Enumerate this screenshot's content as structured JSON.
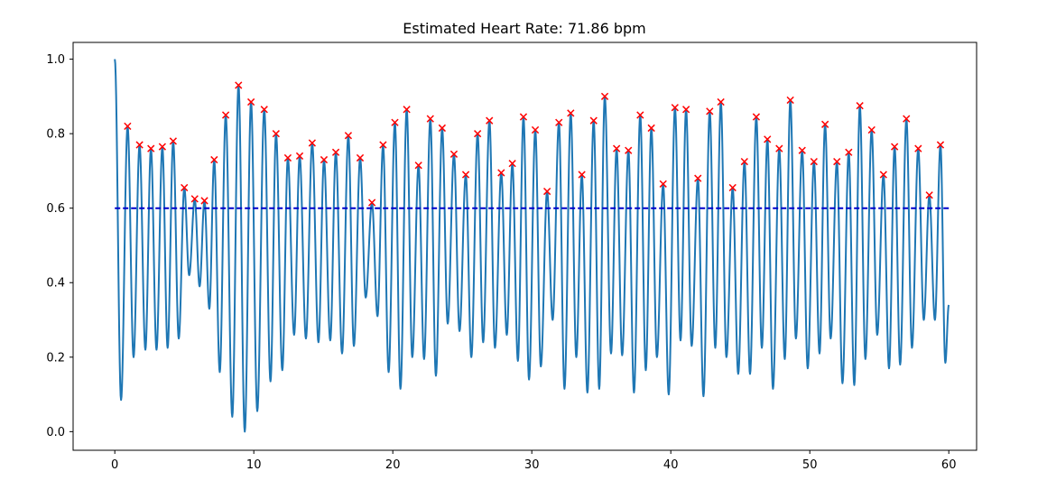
{
  "chart_data": {
    "type": "line",
    "title": "Estimated Heart Rate: 71.86 bpm",
    "xlabel": "",
    "ylabel": "",
    "xlim": [
      -3,
      62
    ],
    "ylim": [
      -0.05,
      1.045
    ],
    "x_ticks": [
      0,
      10,
      20,
      30,
      40,
      50,
      60
    ],
    "x_tick_labels": [
      "0",
      "10",
      "20",
      "30",
      "40",
      "50",
      "60"
    ],
    "y_ticks": [
      0.0,
      0.2,
      0.4,
      0.6,
      0.8,
      1.0
    ],
    "y_tick_labels": [
      "0.0",
      "0.2",
      "0.4",
      "0.6",
      "0.8",
      "1.0"
    ],
    "grid": false,
    "colors": {
      "signal": "#1f77b4",
      "peaks": "#ff0000",
      "threshold": "#0000cc"
    },
    "threshold": {
      "y": 0.6,
      "x_start": 0,
      "x_end": 60,
      "style": "dashed"
    },
    "peaks": {
      "x": [
        0.92,
        1.78,
        2.6,
        3.42,
        4.2,
        5.0,
        5.75,
        6.45,
        7.15,
        7.98,
        8.9,
        9.8,
        10.75,
        11.6,
        12.45,
        13.3,
        14.2,
        15.05,
        15.9,
        16.8,
        17.65,
        18.5,
        19.3,
        20.15,
        21.0,
        21.85,
        22.7,
        23.55,
        24.4,
        25.25,
        26.1,
        26.95,
        27.8,
        28.6,
        29.4,
        30.25,
        31.1,
        31.95,
        32.8,
        33.6,
        34.45,
        35.25,
        36.1,
        36.95,
        37.8,
        38.6,
        39.45,
        40.3,
        41.1,
        41.95,
        42.8,
        43.6,
        44.45,
        45.3,
        46.15,
        46.95,
        47.8,
        48.6,
        49.45,
        50.3,
        51.1,
        51.95,
        52.8,
        53.6,
        54.45,
        55.3,
        56.1,
        56.95,
        57.8,
        58.6,
        59.4
      ],
      "y": [
        0.82,
        0.77,
        0.76,
        0.765,
        0.78,
        0.655,
        0.625,
        0.62,
        0.73,
        0.85,
        0.93,
        0.885,
        0.865,
        0.8,
        0.735,
        0.74,
        0.775,
        0.73,
        0.75,
        0.795,
        0.735,
        0.615,
        0.77,
        0.83,
        0.865,
        0.715,
        0.84,
        0.815,
        0.745,
        0.69,
        0.8,
        0.835,
        0.695,
        0.72,
        0.845,
        0.81,
        0.645,
        0.83,
        0.855,
        0.69,
        0.835,
        0.9,
        0.76,
        0.755,
        0.85,
        0.815,
        0.665,
        0.87,
        0.865,
        0.68,
        0.86,
        0.885,
        0.655,
        0.725,
        0.845,
        0.785,
        0.76,
        0.89,
        0.755,
        0.725,
        0.825,
        0.725,
        0.75,
        0.875,
        0.81,
        0.69,
        0.765,
        0.84,
        0.76,
        0.635,
        0.77
      ]
    },
    "troughs": {
      "x": [
        0.45,
        1.35,
        2.2,
        3.0,
        3.8,
        4.6,
        5.35,
        6.1,
        6.8,
        7.55,
        8.45,
        9.35,
        10.25,
        11.2,
        12.05,
        12.9,
        13.75,
        14.65,
        15.5,
        16.35,
        17.2,
        18.05,
        18.9,
        19.7,
        20.55,
        21.4,
        22.25,
        23.1,
        23.95,
        24.8,
        25.65,
        26.5,
        27.35,
        28.2,
        29.0,
        29.8,
        30.65,
        31.5,
        32.35,
        33.2,
        34.0,
        34.85,
        35.7,
        36.5,
        37.35,
        38.2,
        39.0,
        39.85,
        40.7,
        41.5,
        42.35,
        43.2,
        44.0,
        44.85,
        45.7,
        46.55,
        47.35,
        48.2,
        49.0,
        49.85,
        50.7,
        51.5,
        52.35,
        53.2,
        54.0,
        54.85,
        55.7,
        56.5,
        57.35,
        58.2,
        59.0
      ],
      "y": [
        0.085,
        0.2,
        0.22,
        0.22,
        0.225,
        0.25,
        0.42,
        0.39,
        0.33,
        0.16,
        0.04,
        0.0,
        0.055,
        0.135,
        0.165,
        0.26,
        0.25,
        0.24,
        0.245,
        0.21,
        0.23,
        0.36,
        0.31,
        0.16,
        0.115,
        0.2,
        0.195,
        0.15,
        0.29,
        0.27,
        0.2,
        0.24,
        0.225,
        0.26,
        0.19,
        0.14,
        0.175,
        0.3,
        0.115,
        0.2,
        0.105,
        0.115,
        0.21,
        0.205,
        0.105,
        0.165,
        0.2,
        0.1,
        0.245,
        0.23,
        0.095,
        0.225,
        0.2,
        0.155,
        0.155,
        0.225,
        0.115,
        0.195,
        0.25,
        0.17,
        0.21,
        0.25,
        0.13,
        0.125,
        0.195,
        0.26,
        0.17,
        0.18,
        0.225,
        0.3,
        0.3
      ]
    },
    "start_point": {
      "x": 0,
      "y": 1.0
    },
    "end_trough": {
      "x": 59.75,
      "y": 0.185
    },
    "end_point": {
      "x": 60,
      "y": 0.34
    }
  }
}
